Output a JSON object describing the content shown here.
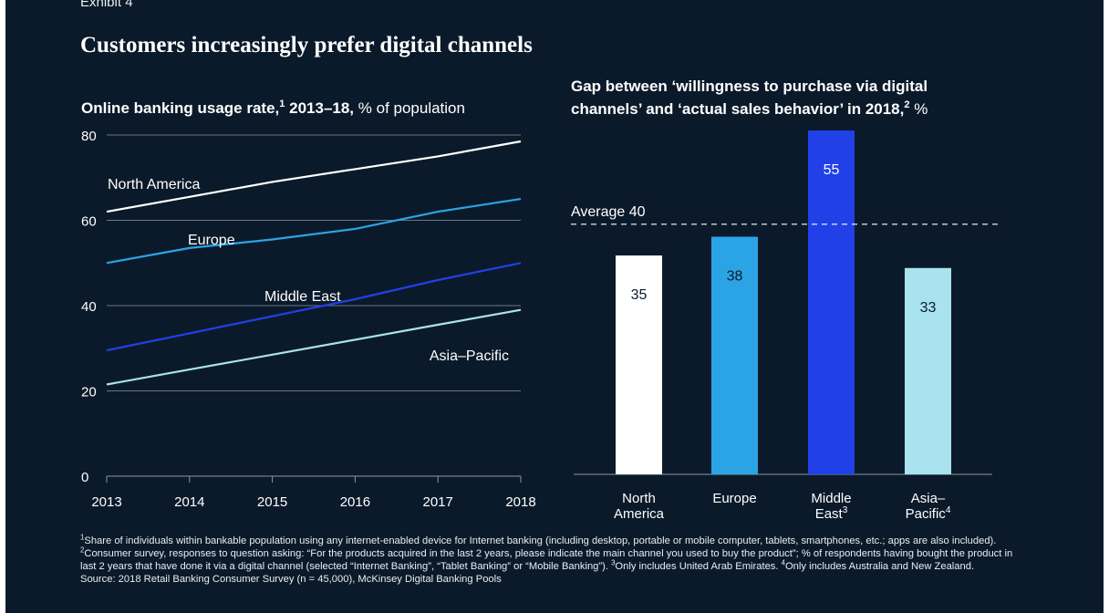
{
  "exhibit_label": "Exhibit 4",
  "title": "Customers increasingly prefer digital channels",
  "colors": {
    "background": "#0b1a2a",
    "north_america": "#ffffff",
    "europe": "#2ba4e6",
    "middle_east": "#2140e8",
    "asia_pacific": "#a9e3ef",
    "gridline": "#8a96a3",
    "text": "#ffffff"
  },
  "chart_data": [
    {
      "type": "line",
      "title_bold": "Online banking usage rate,",
      "title_sup": "1",
      "title_bold2": " 2013–18,",
      "title_rest": " % of population",
      "x": [
        2013,
        2014,
        2015,
        2016,
        2017,
        2018
      ],
      "x_ticks": [
        "2013",
        "2014",
        "2015",
        "2016",
        "2017",
        "2018"
      ],
      "y_ticks": [
        "0",
        "20",
        "40",
        "60",
        "80"
      ],
      "ylim": [
        0,
        80
      ],
      "grid": true,
      "series": [
        {
          "name": "North America",
          "key": "north_america",
          "values": [
            62,
            65.5,
            69,
            72,
            75,
            78.5
          ]
        },
        {
          "name": "Europe",
          "key": "europe",
          "values": [
            50,
            53.5,
            55.5,
            58,
            62,
            65
          ]
        },
        {
          "name": "Middle East",
          "key": "middle_east",
          "values": [
            29.5,
            33.5,
            37.5,
            41.5,
            46,
            50
          ]
        },
        {
          "name": "Asia–Pacific",
          "key": "asia_pacific",
          "values": [
            21.5,
            25,
            28.5,
            32,
            35.5,
            39
          ]
        }
      ]
    },
    {
      "type": "bar",
      "title_line1": "Gap between ‘willingness to purchase via digital",
      "title_line2": "channels’ and ‘actual sales behavior’ in 2018,",
      "title_sup": "2",
      "title_rest": " %",
      "ylim": [
        0,
        55
      ],
      "average": 40,
      "average_label": "Average 40",
      "categories": [
        {
          "line1": "North",
          "line2": "America",
          "sup": "",
          "value": 35,
          "key": "north_america",
          "label_color": "#0b1a2a"
        },
        {
          "line1": "Europe",
          "line2": "",
          "sup": "",
          "value": 38,
          "key": "europe",
          "label_color": "#0b1a2a"
        },
        {
          "line1": "Middle",
          "line2": "East",
          "sup": "3",
          "value": 55,
          "key": "middle_east",
          "label_color": "#ffffff"
        },
        {
          "line1": "Asia–",
          "line2": "Pacific",
          "sup": "4",
          "value": 33,
          "key": "asia_pacific",
          "label_color": "#0b1a2a"
        }
      ]
    }
  ],
  "footnotes": {
    "fn1_sup": "1",
    "fn1": "Share of individuals within bankable population using any internet-enabled device for Internet banking (including desktop, portable or mobile computer, tablets, smartphones, etc.; apps are also included).",
    "fn2_sup": "2",
    "fn2": "Consumer survey, responses to question asking: “For the products acquired in the last 2 years, please indicate the main channel you used to buy the product”; % of respondents having bought the product in last 2 years that have done it via a digital channel (selected “Internet Banking”, “Tablet Banking” or “Mobile Banking”).",
    "fn3_sup": "3",
    "fn3": "Only includes United Arab Emirates.",
    "fn4_sup": "4",
    "fn4": "Only includes Australia and New Zealand.",
    "source": "Source: 2018 Retail Banking Consumer Survey (n = 45,000), McKinsey Digital Banking Pools"
  }
}
